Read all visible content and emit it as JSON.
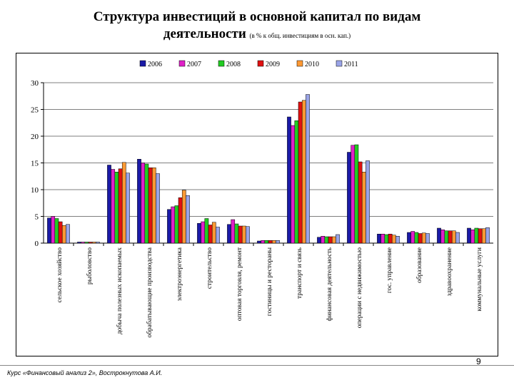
{
  "slide": {
    "title_line1": "Структура инвестиций в основной капитал по видам",
    "title_line2": "деятельности",
    "title_note": "(в % к общ. инвестициям в осн. кап.)",
    "page_number": "9",
    "footer": "Курс «Финансовый анализ 2», Вострокнутова А.И."
  },
  "chart_data": {
    "type": "bar",
    "title": "",
    "xlabel": "",
    "ylabel": "",
    "ylim": [
      0,
      30
    ],
    "yticks": [
      0,
      5,
      10,
      15,
      20,
      25,
      30
    ],
    "grid": true,
    "legend": "top",
    "categories": [
      "сельское хозяйство",
      "рыболовство",
      "добыча полезных ископаемых",
      "обрабатывающие производства",
      "электроэнергетика",
      "строительство",
      "оптовая торговля, ремонт",
      "гостиницы и рестораны",
      "транспорт и связь",
      "финансовая деятельность",
      "операции с недвижимостью",
      "гос. управление",
      "образование",
      "здравоохранение",
      "коммунальные услуги"
    ],
    "series": [
      {
        "name": "2006",
        "color": "#1a1aa6",
        "values": [
          4.7,
          0.2,
          14.6,
          15.7,
          6.3,
          3.7,
          3.5,
          0.4,
          23.6,
          1.1,
          17.0,
          1.7,
          2.0,
          2.8,
          2.8
        ]
      },
      {
        "name": "2007",
        "color": "#e020c8",
        "values": [
          5.0,
          0.2,
          13.8,
          15.0,
          6.8,
          4.0,
          4.4,
          0.5,
          22.0,
          1.3,
          18.3,
          1.7,
          2.2,
          2.5,
          2.5
        ]
      },
      {
        "name": "2008",
        "color": "#22cc22",
        "values": [
          4.6,
          0.2,
          13.3,
          14.8,
          7.0,
          4.6,
          3.6,
          0.5,
          22.9,
          1.2,
          18.4,
          1.6,
          2.0,
          2.3,
          2.8
        ]
      },
      {
        "name": "2009",
        "color": "#e01010",
        "values": [
          4.0,
          0.2,
          13.9,
          14.1,
          8.5,
          3.4,
          3.2,
          0.5,
          26.4,
          1.2,
          15.2,
          1.7,
          1.8,
          2.3,
          2.7
        ]
      },
      {
        "name": "2010",
        "color": "#ff9933",
        "values": [
          3.3,
          0.2,
          15.1,
          14.1,
          9.9,
          3.9,
          3.2,
          0.5,
          26.7,
          1.2,
          13.3,
          1.5,
          1.9,
          2.3,
          2.7
        ]
      },
      {
        "name": "2011",
        "color": "#9aa4e8",
        "values": [
          3.5,
          0.2,
          13.1,
          13.0,
          8.9,
          3.0,
          3.1,
          0.5,
          27.8,
          1.6,
          15.4,
          1.3,
          1.8,
          2.0,
          2.9
        ]
      }
    ]
  }
}
